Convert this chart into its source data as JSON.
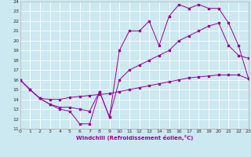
{
  "background_color": "#cce8f0",
  "line_color": "#990099",
  "grid_color": "#ffffff",
  "xlim": [
    0,
    23
  ],
  "ylim": [
    11,
    24
  ],
  "xticks": [
    0,
    1,
    2,
    3,
    4,
    5,
    6,
    7,
    8,
    9,
    10,
    11,
    12,
    13,
    14,
    15,
    16,
    17,
    18,
    19,
    20,
    21,
    22,
    23
  ],
  "yticks": [
    11,
    12,
    13,
    14,
    15,
    16,
    17,
    18,
    19,
    20,
    21,
    22,
    23,
    24
  ],
  "xlabel": "Windchill (Refroidissement éolien,°C)",
  "line1_x": [
    0,
    1,
    2,
    3,
    4,
    5,
    6,
    7,
    8,
    9,
    10,
    11,
    12,
    13,
    14,
    15,
    16,
    17,
    18,
    19,
    20,
    21,
    22,
    23
  ],
  "line1_y": [
    16,
    15,
    14.1,
    13.5,
    13.0,
    12.8,
    11.5,
    11.5,
    14.8,
    12.2,
    16.0,
    17.0,
    17.5,
    18.0,
    18.5,
    19.0,
    20.0,
    20.5,
    21.0,
    21.5,
    21.8,
    19.5,
    18.5,
    18.2
  ],
  "line2_x": [
    0,
    1,
    2,
    3,
    4,
    5,
    6,
    7,
    8,
    9,
    10,
    11,
    12,
    13,
    14,
    15,
    16,
    17,
    18,
    19,
    20,
    21,
    22,
    23
  ],
  "line2_y": [
    16,
    15,
    14.1,
    14.0,
    14.0,
    14.2,
    14.3,
    14.4,
    14.5,
    14.6,
    14.8,
    15.0,
    15.2,
    15.4,
    15.6,
    15.8,
    16.0,
    16.2,
    16.3,
    16.4,
    16.5,
    16.5,
    16.5,
    16.1
  ],
  "line3_x": [
    0,
    1,
    2,
    3,
    4,
    5,
    6,
    7,
    8,
    9,
    10,
    11,
    12,
    13,
    14,
    15,
    16,
    17,
    18,
    19,
    20,
    21,
    22,
    23
  ],
  "line3_y": [
    16,
    15,
    14.1,
    13.5,
    13.2,
    13.2,
    13.0,
    12.8,
    14.8,
    12.2,
    19.0,
    21.0,
    21.0,
    22.0,
    19.5,
    22.5,
    23.7,
    23.3,
    23.7,
    23.3,
    23.3,
    21.8,
    19.5,
    16.1
  ]
}
